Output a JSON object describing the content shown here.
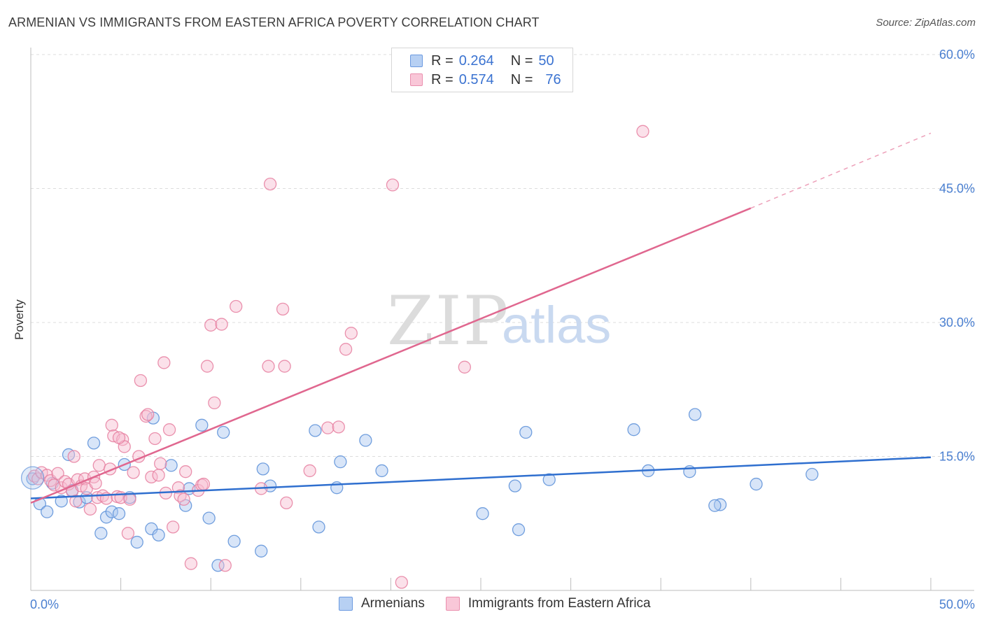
{
  "chart_data": {
    "type": "scatter",
    "title": "ARMENIAN VS IMMIGRANTS FROM EASTERN AFRICA POVERTY CORRELATION CHART",
    "source": "Source: ZipAtlas.com",
    "xlabel": "",
    "ylabel": "Poverty",
    "xlim": [
      0,
      50
    ],
    "ylim": [
      0,
      60
    ],
    "x_ticks": [
      "0.0%",
      "50.0%"
    ],
    "y_ticks": [
      {
        "value": 15,
        "label": "15.0%"
      },
      {
        "value": 30,
        "label": "30.0%"
      },
      {
        "value": 45,
        "label": "45.0%"
      },
      {
        "value": 60,
        "label": "60.0%"
      }
    ],
    "grid": true,
    "watermark": {
      "zip": "ZIP",
      "atlas": "atlas"
    },
    "legend": {
      "position": "top-center",
      "rows": [
        {
          "r_label": "R =",
          "r_value": "0.264",
          "n_label": "N =",
          "n_value": "50"
        },
        {
          "r_label": "R =",
          "r_value": "0.574",
          "n_label": "N =",
          "n_value": "76"
        }
      ]
    },
    "series": [
      {
        "name": "Armenians",
        "color": "#5b8fd8",
        "fill": "#a9c6ef",
        "trendline": {
          "x0": 0,
          "y0": 10.3,
          "x1": 50,
          "y1": 14.9,
          "dashed_from": null
        },
        "points": [
          [
            0.1,
            12.5
          ],
          [
            0.5,
            9.7
          ],
          [
            0.9,
            8.8
          ],
          [
            1.2,
            12.0
          ],
          [
            1.7,
            10.0
          ],
          [
            2.1,
            15.2
          ],
          [
            2.3,
            11.2
          ],
          [
            2.7,
            9.9
          ],
          [
            3.1,
            10.4
          ],
          [
            3.5,
            16.5
          ],
          [
            3.9,
            6.4
          ],
          [
            4.2,
            8.2
          ],
          [
            4.5,
            8.8
          ],
          [
            4.9,
            8.6
          ],
          [
            5.2,
            14.1
          ],
          [
            5.5,
            10.4
          ],
          [
            5.9,
            5.4
          ],
          [
            6.8,
            19.3
          ],
          [
            6.7,
            6.9
          ],
          [
            7.1,
            6.2
          ],
          [
            7.8,
            14.0
          ],
          [
            8.6,
            9.5
          ],
          [
            8.8,
            11.4
          ],
          [
            9.5,
            18.5
          ],
          [
            9.9,
            8.1
          ],
          [
            10.4,
            2.8
          ],
          [
            10.7,
            17.7
          ],
          [
            11.3,
            5.5
          ],
          [
            12.8,
            4.4
          ],
          [
            12.9,
            13.6
          ],
          [
            13.3,
            11.7
          ],
          [
            15.8,
            17.9
          ],
          [
            16.0,
            7.1
          ],
          [
            17.0,
            11.5
          ],
          [
            17.2,
            14.4
          ],
          [
            18.6,
            16.8
          ],
          [
            19.5,
            13.4
          ],
          [
            25.1,
            8.6
          ],
          [
            26.9,
            11.7
          ],
          [
            27.1,
            6.8
          ],
          [
            27.5,
            17.7
          ],
          [
            28.8,
            12.4
          ],
          [
            33.5,
            18.0
          ],
          [
            34.3,
            13.4
          ],
          [
            36.6,
            13.3
          ],
          [
            36.9,
            19.7
          ],
          [
            38.3,
            9.6
          ],
          [
            40.3,
            11.9
          ],
          [
            43.4,
            13.0
          ],
          [
            38.0,
            9.5
          ]
        ]
      },
      {
        "name": "Immigrants from Eastern Africa",
        "color": "#e67fa0",
        "fill": "#f6bcd0",
        "trendline": {
          "x0": 0,
          "y0": 9.8,
          "x1": 40,
          "y1": 42.8,
          "x2": 50,
          "y2": 51.2
        },
        "points": [
          [
            0.2,
            12.8
          ],
          [
            0.4,
            12.5
          ],
          [
            0.6,
            13.2
          ],
          [
            0.9,
            12.9
          ],
          [
            1.1,
            12.3
          ],
          [
            1.3,
            11.8
          ],
          [
            1.5,
            13.1
          ],
          [
            1.7,
            11.5
          ],
          [
            1.9,
            12.2
          ],
          [
            2.1,
            11.9
          ],
          [
            2.3,
            11.1
          ],
          [
            2.4,
            15.0
          ],
          [
            2.6,
            12.4
          ],
          [
            2.8,
            11.7
          ],
          [
            3.0,
            12.5
          ],
          [
            3.1,
            11.4
          ],
          [
            3.3,
            9.1
          ],
          [
            3.5,
            12.7
          ],
          [
            3.7,
            10.4
          ],
          [
            3.8,
            14.0
          ],
          [
            4.0,
            10.6
          ],
          [
            4.2,
            10.3
          ],
          [
            4.4,
            13.6
          ],
          [
            4.5,
            18.5
          ],
          [
            4.6,
            17.3
          ],
          [
            4.8,
            10.5
          ],
          [
            5.0,
            10.4
          ],
          [
            5.1,
            16.9
          ],
          [
            5.2,
            16.1
          ],
          [
            5.4,
            6.4
          ],
          [
            5.5,
            10.2
          ],
          [
            5.7,
            13.2
          ],
          [
            6.0,
            15.0
          ],
          [
            6.1,
            23.5
          ],
          [
            6.4,
            19.5
          ],
          [
            6.5,
            19.7
          ],
          [
            6.7,
            12.7
          ],
          [
            6.9,
            17.0
          ],
          [
            7.1,
            12.9
          ],
          [
            7.2,
            14.2
          ],
          [
            7.4,
            25.5
          ],
          [
            7.5,
            10.9
          ],
          [
            7.7,
            18.0
          ],
          [
            7.9,
            7.1
          ],
          [
            8.2,
            11.5
          ],
          [
            8.3,
            10.6
          ],
          [
            8.5,
            10.2
          ],
          [
            8.6,
            13.3
          ],
          [
            8.9,
            3.0
          ],
          [
            9.3,
            11.2
          ],
          [
            9.5,
            11.8
          ],
          [
            9.6,
            11.9
          ],
          [
            9.8,
            25.1
          ],
          [
            10.0,
            29.7
          ],
          [
            10.2,
            21.0
          ],
          [
            10.6,
            29.8
          ],
          [
            10.8,
            2.8
          ],
          [
            11.4,
            31.8
          ],
          [
            12.8,
            11.4
          ],
          [
            13.2,
            25.1
          ],
          [
            13.3,
            45.5
          ],
          [
            14.0,
            31.5
          ],
          [
            14.1,
            25.1
          ],
          [
            14.2,
            9.8
          ],
          [
            15.5,
            13.4
          ],
          [
            16.5,
            18.2
          ],
          [
            17.1,
            18.3
          ],
          [
            17.5,
            27.0
          ],
          [
            17.8,
            28.8
          ],
          [
            20.1,
            45.4
          ],
          [
            20.6,
            0.9
          ],
          [
            24.1,
            25.0
          ],
          [
            34.0,
            51.4
          ],
          [
            2.5,
            10.0
          ],
          [
            4.9,
            17.1
          ],
          [
            3.6,
            12.0
          ]
        ]
      }
    ]
  }
}
